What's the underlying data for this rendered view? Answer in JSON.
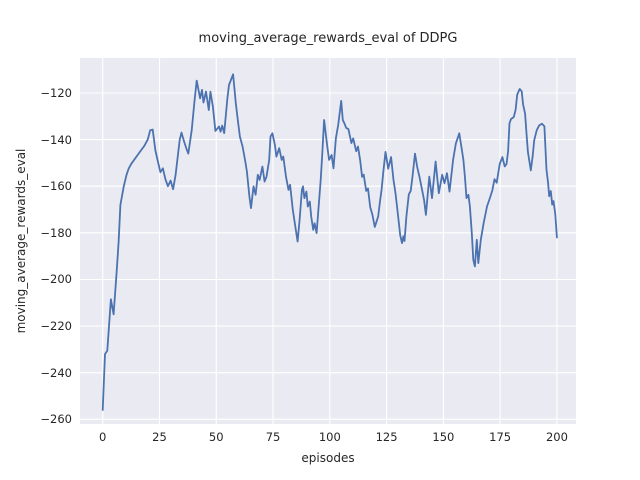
{
  "figure": {
    "title": "moving_average_rewards_eval of DDPG",
    "xlabel": "episodes",
    "ylabel": "moving_average_rewards_eval"
  },
  "chart_data": {
    "type": "line",
    "title": "moving_average_rewards_eval of DDPG",
    "xlabel": "episodes",
    "ylabel": "moving_average_rewards_eval",
    "x_ticks": [
      0,
      25,
      50,
      75,
      100,
      125,
      150,
      175,
      200
    ],
    "y_ticks": [
      -260,
      -240,
      -220,
      -200,
      -180,
      -160,
      -140,
      -120
    ],
    "xlim": [
      -10,
      208.4
    ],
    "ylim": [
      -262,
      -105
    ],
    "grid": true,
    "legend": null,
    "style": {
      "line_color": "#4c72b0",
      "axes_bg": "#eaeaf2",
      "grid_color": "#ffffff",
      "text_color": "#262626",
      "line_width": 1.8
    },
    "series": [
      {
        "name": "moving_average_rewards_eval",
        "x": [
          0,
          1,
          2,
          3,
          3.6,
          4.8,
          6.1,
          7,
          7.8,
          9.3,
          10.5,
          11.5,
          12.6,
          13.8,
          16,
          18.3,
          19.8,
          20.9,
          22,
          23.2,
          24.3,
          25.4,
          26.5,
          27.6,
          28.7,
          29.9,
          31,
          32.1,
          33.9,
          34.7,
          35.9,
          36.9,
          37.7,
          39.2,
          40.4,
          41.4,
          42.9,
          43.7,
          44.4,
          45.5,
          46.7,
          47.4,
          48.5,
          49.6,
          51.2,
          51.9,
          52.6,
          53.5,
          54.9,
          55.6,
          57.4,
          58.6,
          59.4,
          60.4,
          61.6,
          62.8,
          63.5,
          64.6,
          65.3,
          66.4,
          67.3,
          68.3,
          69.1,
          70.3,
          71.3,
          72.1,
          73.3,
          73.9,
          74.7,
          75.8,
          76.5,
          77.7,
          78.8,
          79.5,
          80.7,
          81.8,
          82.5,
          83.7,
          84.8,
          85.8,
          86.7,
          87.7,
          88.2,
          88.8,
          89.7,
          90.3,
          91.2,
          91.8,
          92.7,
          93.3,
          94.2,
          95.2,
          96,
          96.7,
          97.5,
          98.9,
          99.7,
          100.8,
          101.6,
          102.7,
          103.7,
          105,
          105.7,
          106.4,
          107.2,
          108.2,
          109.5,
          110.3,
          111.6,
          112.4,
          113.4,
          114.2,
          114.9,
          116,
          116.8,
          117.8,
          118.7,
          119.8,
          121.3,
          122,
          122.8,
          123.5,
          124.5,
          125.7,
          127,
          128,
          128.9,
          130,
          131,
          131.8,
          132.4,
          132.9,
          133.7,
          134.8,
          135.6,
          136.3,
          137.5,
          138.5,
          139.5,
          140.5,
          141.5,
          142.3,
          143.8,
          145,
          146.6,
          148,
          149.5,
          150.5,
          151.6,
          152.7,
          154.3,
          155.5,
          157,
          158.8,
          159.5,
          160.2,
          161,
          161.7,
          162.5,
          163.2,
          163.9,
          164.7,
          165.4,
          166.5,
          167.7,
          169.2,
          170.7,
          171.5,
          172.5,
          173.5,
          174.8,
          176,
          177,
          177.8,
          178.5,
          179.1,
          179.8,
          181,
          181.8,
          182.5,
          183.6,
          184.5,
          185.1,
          186,
          186.6,
          187.2,
          188.5,
          189.3,
          190,
          191.1,
          192.2,
          193.4,
          194.5,
          195.4,
          196.1,
          196.6,
          197.3,
          197.9,
          198.5,
          199.3,
          200
        ],
        "y": [
          -256,
          -232,
          -230.5,
          -217,
          -208.5,
          -215,
          -197,
          -184,
          -168,
          -160,
          -155,
          -152.3,
          -150.4,
          -148.7,
          -145.8,
          -142.7,
          -140,
          -136,
          -135.7,
          -144.7,
          -149.4,
          -154,
          -152.3,
          -157,
          -160,
          -157.6,
          -161.3,
          -155.1,
          -140.1,
          -137,
          -141,
          -144,
          -146,
          -136,
          -123.5,
          -114.7,
          -122.3,
          -118.7,
          -124.1,
          -119.4,
          -127.3,
          -119.4,
          -125.9,
          -136.3,
          -134.4,
          -136.6,
          -134,
          -137.2,
          -122.3,
          -116.6,
          -112,
          -124.4,
          -130.9,
          -138.7,
          -143,
          -149.4,
          -153.7,
          -164.4,
          -169.4,
          -160.1,
          -163.7,
          -155.1,
          -157.3,
          -151.6,
          -158,
          -155.9,
          -148.7,
          -138.7,
          -137.3,
          -142.3,
          -147.3,
          -143.7,
          -148.7,
          -147.3,
          -155.9,
          -161.6,
          -159.4,
          -170.1,
          -177.3,
          -183.7,
          -174.4,
          -161.6,
          -160.1,
          -165.1,
          -162.3,
          -168.7,
          -166.6,
          -173,
          -178.7,
          -175.9,
          -180.1,
          -167.3,
          -157.3,
          -145.9,
          -131.6,
          -143,
          -148.7,
          -146.6,
          -152.3,
          -139.4,
          -133.7,
          -123.4,
          -131.6,
          -133,
          -135,
          -135.5,
          -141.5,
          -139.5,
          -145,
          -143,
          -149,
          -156,
          -155,
          -162,
          -161,
          -169,
          -172,
          -177.5,
          -172.9,
          -167.1,
          -161.4,
          -154.3,
          -145.3,
          -152.5,
          -147.5,
          -157,
          -163,
          -172,
          -181,
          -184.4,
          -181.5,
          -183.5,
          -173,
          -163.5,
          -162,
          -156.6,
          -146,
          -152,
          -156,
          -161,
          -166,
          -172.3,
          -155.9,
          -165.1,
          -149.4,
          -163,
          -155.1,
          -158.7,
          -154.4,
          -162.3,
          -148.7,
          -141.6,
          -137.3,
          -148.7,
          -155.9,
          -165.1,
          -163.7,
          -168.7,
          -180.1,
          -191.6,
          -194.4,
          -183,
          -193,
          -183,
          -175.9,
          -168.7,
          -164.4,
          -162,
          -157,
          -158.5,
          -150.5,
          -147.5,
          -151.5,
          -150.5,
          -145,
          -133,
          -131.2,
          -130.3,
          -127.2,
          -120.7,
          -118.3,
          -119.3,
          -125,
          -128.9,
          -137.4,
          -145.3,
          -153.2,
          -147.4,
          -140.3,
          -136,
          -133.9,
          -133.2,
          -134.3,
          -153,
          -158.6,
          -164.3,
          -162.1,
          -167.9,
          -166.4,
          -172,
          -182
        ]
      }
    ]
  }
}
